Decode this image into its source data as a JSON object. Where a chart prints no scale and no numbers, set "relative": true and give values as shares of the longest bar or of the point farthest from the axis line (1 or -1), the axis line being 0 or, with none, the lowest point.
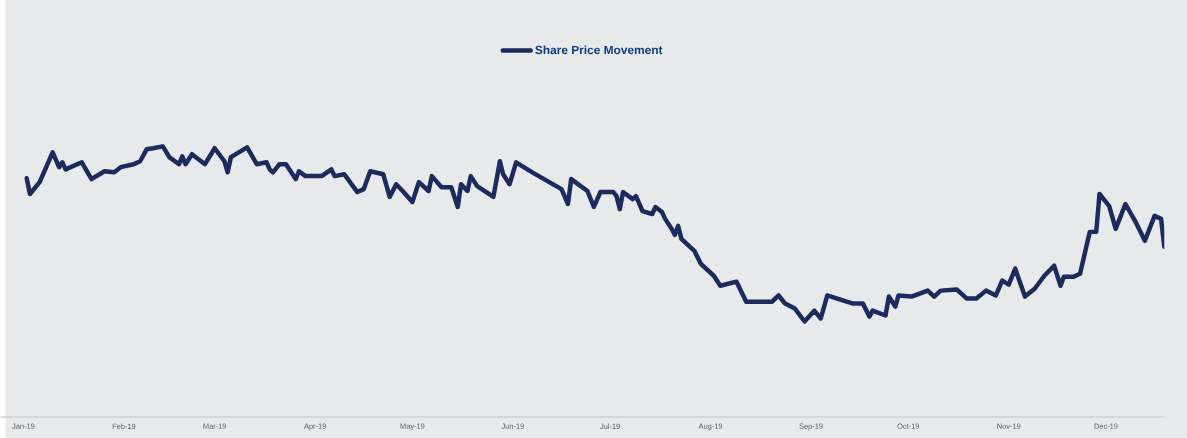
{
  "chart_data": {
    "type": "line",
    "relative": true,
    "legend": "top",
    "grid": false,
    "marker": "none",
    "line_style": "solid",
    "xlim": [
      "2018-12-25",
      "2019-12-19"
    ],
    "xticks": [
      {
        "value": "2019-01-01",
        "label": "Jan-19"
      },
      {
        "value": "2019-02-01",
        "label": "Feb-19"
      },
      {
        "value": "2019-03-01",
        "label": "Mar-19"
      },
      {
        "value": "2019-04-01",
        "label": "Apr-19"
      },
      {
        "value": "2019-05-01",
        "label": "May-19"
      },
      {
        "value": "2019-06-01",
        "label": "Jun-19"
      },
      {
        "value": "2019-07-01",
        "label": "Jul-19"
      },
      {
        "value": "2019-08-01",
        "label": "Aug-19"
      },
      {
        "value": "2019-09-01",
        "label": "Sep-19"
      },
      {
        "value": "2019-10-01",
        "label": "Oct-19"
      },
      {
        "value": "2019-11-01",
        "label": "Nov-19"
      },
      {
        "value": "2019-12-01",
        "label": "Dec-19"
      }
    ],
    "x": [
      "2019-01-02",
      "2019-01-03",
      "2019-01-06",
      "2019-01-10",
      "2019-01-12",
      "2019-01-13",
      "2019-01-14",
      "2019-01-19",
      "2019-01-22",
      "2019-01-26",
      "2019-01-29",
      "2019-01-31",
      "2019-02-04",
      "2019-02-06",
      "2019-02-08",
      "2019-02-10",
      "2019-02-13",
      "2019-02-15",
      "2019-02-18",
      "2019-02-19",
      "2019-02-20",
      "2019-02-22",
      "2019-02-26",
      "2019-03-01",
      "2019-03-04",
      "2019-03-05",
      "2019-03-06",
      "2019-03-11",
      "2019-03-14",
      "2019-03-17",
      "2019-03-18",
      "2019-03-19",
      "2019-03-21",
      "2019-03-23",
      "2019-03-26",
      "2019-03-27",
      "2019-03-29",
      "2019-04-03",
      "2019-04-06",
      "2019-04-07",
      "2019-04-10",
      "2019-04-14",
      "2019-04-16",
      "2019-04-18",
      "2019-04-22",
      "2019-04-24",
      "2019-04-26",
      "2019-04-28",
      "2019-05-01",
      "2019-05-03",
      "2019-05-06",
      "2019-05-07",
      "2019-05-10",
      "2019-05-13",
      "2019-05-15",
      "2019-05-16",
      "2019-05-18",
      "2019-05-19",
      "2019-05-21",
      "2019-05-26",
      "2019-05-28",
      "2019-05-29",
      "2019-05-31",
      "2019-06-02",
      "2019-06-07",
      "2019-06-16",
      "2019-06-18",
      "2019-06-19",
      "2019-06-24",
      "2019-06-26",
      "2019-06-28",
      "2019-07-02",
      "2019-07-03",
      "2019-07-04",
      "2019-07-05",
      "2019-07-08",
      "2019-07-09",
      "2019-07-11",
      "2019-07-14",
      "2019-07-15",
      "2019-07-17",
      "2019-07-18",
      "2019-07-20",
      "2019-07-21",
      "2019-07-22",
      "2019-07-23",
      "2019-07-27",
      "2019-07-29",
      "2019-08-02",
      "2019-08-04",
      "2019-08-09",
      "2019-08-12",
      "2019-08-20",
      "2019-08-22",
      "2019-08-24",
      "2019-08-27",
      "2019-08-30",
      "2019-09-02",
      "2019-09-04",
      "2019-09-06",
      "2019-09-12",
      "2019-09-14",
      "2019-09-17",
      "2019-09-19",
      "2019-09-20",
      "2019-09-24",
      "2019-09-25",
      "2019-09-27",
      "2019-09-28",
      "2019-10-02",
      "2019-10-07",
      "2019-10-09",
      "2019-10-11",
      "2019-10-16",
      "2019-10-19",
      "2019-10-22",
      "2019-10-25",
      "2019-10-28",
      "2019-10-30",
      "2019-11-01",
      "2019-11-03",
      "2019-11-06",
      "2019-11-09",
      "2019-11-12",
      "2019-11-15",
      "2019-11-17",
      "2019-11-18",
      "2019-11-21",
      "2019-11-23",
      "2019-11-26",
      "2019-11-28",
      "2019-11-29",
      "2019-12-02",
      "2019-12-04",
      "2019-12-07",
      "2019-12-10",
      "2019-12-13",
      "2019-12-16",
      "2019-12-18",
      "2019-12-19"
    ],
    "series": [
      {
        "name": "Share Price Movement",
        "color": "#1c2a5e",
        "values": [
          0.882,
          0.824,
          0.868,
          0.978,
          0.923,
          0.941,
          0.915,
          0.941,
          0.879,
          0.908,
          0.904,
          0.923,
          0.934,
          0.945,
          0.989,
          0.993,
          1.0,
          0.96,
          0.934,
          0.963,
          0.934,
          0.971,
          0.934,
          0.993,
          0.945,
          0.904,
          0.96,
          0.996,
          0.934,
          0.941,
          0.915,
          0.904,
          0.934,
          0.934,
          0.879,
          0.908,
          0.89,
          0.89,
          0.915,
          0.89,
          0.897,
          0.831,
          0.842,
          0.908,
          0.897,
          0.813,
          0.86,
          0.835,
          0.794,
          0.868,
          0.835,
          0.89,
          0.849,
          0.849,
          0.776,
          0.86,
          0.835,
          0.89,
          0.853,
          0.813,
          0.945,
          0.897,
          0.86,
          0.941,
          0.904,
          0.842,
          0.787,
          0.879,
          0.835,
          0.776,
          0.831,
          0.831,
          0.816,
          0.768,
          0.831,
          0.805,
          0.816,
          0.761,
          0.75,
          0.776,
          0.757,
          0.732,
          0.695,
          0.673,
          0.706,
          0.658,
          0.614,
          0.566,
          0.522,
          0.485,
          0.5,
          0.426,
          0.426,
          0.449,
          0.419,
          0.401,
          0.353,
          0.393,
          0.364,
          0.449,
          0.426,
          0.419,
          0.419,
          0.371,
          0.393,
          0.375,
          0.445,
          0.408,
          0.449,
          0.445,
          0.467,
          0.445,
          0.467,
          0.471,
          0.438,
          0.438,
          0.467,
          0.449,
          0.504,
          0.489,
          0.548,
          0.445,
          0.474,
          0.522,
          0.559,
          0.485,
          0.518,
          0.518,
          0.529,
          0.684,
          0.684,
          0.824,
          0.779,
          0.695,
          0.787,
          0.724,
          0.651,
          0.743,
          0.732,
          0.629
        ]
      }
    ]
  }
}
